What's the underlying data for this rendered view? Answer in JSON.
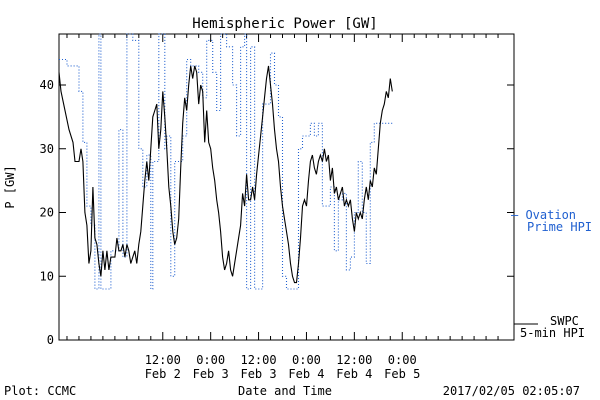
{
  "chart_data": {
    "type": "line",
    "title": "Hemispheric Power [GW]",
    "ylabel": "P [GW]",
    "xlabel": "Date and Time",
    "ylim": [
      0,
      48
    ],
    "xlim": [
      -14,
      100
    ],
    "x_unit": "hours since 2017-02-02 00:00",
    "yticks": [
      0,
      10,
      20,
      30,
      40
    ],
    "xticks": [
      {
        "x": 12,
        "time": "12:00",
        "date": "Feb 2"
      },
      {
        "x": 24,
        "time": "0:00",
        "date": "Feb 3"
      },
      {
        "x": 36,
        "time": "12:00",
        "date": "Feb 3"
      },
      {
        "x": 48,
        "time": "0:00",
        "date": "Feb 4"
      },
      {
        "x": 60,
        "time": "12:00",
        "date": "Feb 4"
      },
      {
        "x": 72,
        "time": "0:00",
        "date": "Feb 5"
      }
    ],
    "series": [
      {
        "name": "SWPC 5-min HPI",
        "style": "solid",
        "color": "#000000",
        "points": [
          [
            -14,
            42
          ],
          [
            -13.5,
            39
          ],
          [
            -12.5,
            36
          ],
          [
            -11.5,
            33
          ],
          [
            -10.5,
            31
          ],
          [
            -10,
            28
          ],
          [
            -9,
            28
          ],
          [
            -8.5,
            30
          ],
          [
            -8,
            28
          ],
          [
            -7.5,
            20
          ],
          [
            -7,
            18
          ],
          [
            -6.5,
            12
          ],
          [
            -6,
            14
          ],
          [
            -5.5,
            24
          ],
          [
            -5,
            16
          ],
          [
            -4.5,
            15
          ],
          [
            -4,
            12
          ],
          [
            -3.5,
            10
          ],
          [
            -3,
            14
          ],
          [
            -2.5,
            11
          ],
          [
            -2,
            14
          ],
          [
            -1.5,
            11
          ],
          [
            -1,
            13
          ],
          [
            0,
            13
          ],
          [
            0.5,
            16
          ],
          [
            1,
            14
          ],
          [
            1.5,
            14
          ],
          [
            2,
            15
          ],
          [
            2.5,
            13
          ],
          [
            3,
            15
          ],
          [
            3.5,
            14
          ],
          [
            4,
            12
          ],
          [
            4.5,
            13
          ],
          [
            5,
            14
          ],
          [
            5.5,
            12
          ],
          [
            6,
            15
          ],
          [
            6.5,
            17
          ],
          [
            7,
            21
          ],
          [
            7.5,
            25
          ],
          [
            8,
            28
          ],
          [
            8.5,
            25
          ],
          [
            9,
            30
          ],
          [
            9.5,
            35
          ],
          [
            10,
            36
          ],
          [
            10.5,
            37
          ],
          [
            11,
            30
          ],
          [
            11.5,
            33
          ],
          [
            12,
            39
          ],
          [
            12.5,
            35
          ],
          [
            13,
            30
          ],
          [
            13.5,
            24
          ],
          [
            14,
            21
          ],
          [
            14.5,
            17
          ],
          [
            15,
            15
          ],
          [
            15.5,
            16
          ],
          [
            16,
            19
          ],
          [
            16.5,
            27
          ],
          [
            17,
            34
          ],
          [
            17.5,
            38
          ],
          [
            18,
            36
          ],
          [
            18.5,
            40
          ],
          [
            19,
            43
          ],
          [
            19.5,
            41
          ],
          [
            20,
            43
          ],
          [
            20.5,
            42
          ],
          [
            21,
            37
          ],
          [
            21.5,
            40
          ],
          [
            22,
            39
          ],
          [
            22.5,
            31
          ],
          [
            23,
            36
          ],
          [
            23.5,
            31
          ],
          [
            24,
            30
          ],
          [
            24.5,
            27
          ],
          [
            25,
            25
          ],
          [
            25.5,
            22
          ],
          [
            26,
            20
          ],
          [
            26.5,
            17
          ],
          [
            27,
            13
          ],
          [
            27.5,
            11
          ],
          [
            28,
            12
          ],
          [
            28.5,
            14
          ],
          [
            29,
            11
          ],
          [
            29.5,
            10
          ],
          [
            30,
            12
          ],
          [
            30.5,
            14
          ],
          [
            31,
            16
          ],
          [
            31.5,
            18
          ],
          [
            32,
            23
          ],
          [
            32.5,
            21
          ],
          [
            33,
            26
          ],
          [
            33.5,
            22
          ],
          [
            34,
            22
          ],
          [
            34.5,
            24
          ],
          [
            35,
            22
          ],
          [
            35.5,
            26
          ],
          [
            36,
            29
          ],
          [
            36.5,
            32
          ],
          [
            37,
            35
          ],
          [
            37.5,
            38
          ],
          [
            38,
            41
          ],
          [
            38.5,
            43
          ],
          [
            39,
            40
          ],
          [
            39.5,
            37
          ],
          [
            40,
            33
          ],
          [
            40.5,
            30
          ],
          [
            41,
            28
          ],
          [
            41.5,
            24
          ],
          [
            42,
            21
          ],
          [
            42.5,
            19
          ],
          [
            43,
            17
          ],
          [
            43.5,
            15
          ],
          [
            44,
            12
          ],
          [
            44.5,
            10
          ],
          [
            45,
            9
          ],
          [
            45.5,
            9
          ],
          [
            46,
            12
          ],
          [
            46.5,
            16
          ],
          [
            47,
            21
          ],
          [
            47.5,
            22
          ],
          [
            48,
            21
          ],
          [
            48.5,
            25
          ],
          [
            49,
            28
          ],
          [
            49.5,
            29
          ],
          [
            50,
            27
          ],
          [
            50.5,
            26
          ],
          [
            51,
            28
          ],
          [
            51.5,
            29
          ],
          [
            52,
            28
          ],
          [
            52.5,
            30
          ],
          [
            53,
            28
          ],
          [
            53.5,
            29
          ],
          [
            54,
            25
          ],
          [
            54.5,
            27
          ],
          [
            55,
            23
          ],
          [
            55.5,
            24
          ],
          [
            56,
            22
          ],
          [
            56.5,
            23
          ],
          [
            57,
            24
          ],
          [
            57.5,
            21
          ],
          [
            58,
            22
          ],
          [
            58.5,
            21
          ],
          [
            59,
            22
          ],
          [
            59.5,
            19
          ],
          [
            60,
            17
          ],
          [
            60.5,
            20
          ],
          [
            61,
            19
          ],
          [
            61.5,
            20
          ],
          [
            62,
            19
          ],
          [
            62.5,
            22
          ],
          [
            63,
            24
          ],
          [
            63.5,
            22
          ],
          [
            64,
            25
          ],
          [
            64.5,
            24
          ],
          [
            65,
            27
          ],
          [
            65.5,
            26
          ],
          [
            66,
            30
          ],
          [
            66.5,
            34
          ],
          [
            67,
            36
          ],
          [
            67.5,
            37
          ],
          [
            68,
            39
          ],
          [
            68.5,
            38
          ],
          [
            69,
            41
          ],
          [
            69.5,
            39
          ]
        ]
      },
      {
        "name": "Ovation Prime HPI",
        "style": "dotted",
        "color": "#2060d0",
        "points": [
          [
            -14,
            44
          ],
          [
            -12,
            44
          ],
          [
            -12,
            43
          ],
          [
            -9,
            43
          ],
          [
            -9,
            39
          ],
          [
            -8,
            39
          ],
          [
            -8,
            31
          ],
          [
            -7,
            31
          ],
          [
            -7,
            21
          ],
          [
            -6,
            21
          ],
          [
            -6,
            18
          ],
          [
            -5,
            18
          ],
          [
            -5,
            8
          ],
          [
            -4,
            8
          ],
          [
            -4,
            48
          ],
          [
            -3.5,
            48
          ],
          [
            -3.5,
            8
          ],
          [
            -1,
            8
          ],
          [
            -1,
            14
          ],
          [
            1,
            14
          ],
          [
            1,
            33
          ],
          [
            2,
            33
          ],
          [
            2,
            13
          ],
          [
            3,
            13
          ],
          [
            3,
            48
          ],
          [
            4.5,
            48
          ],
          [
            4.5,
            47
          ],
          [
            6,
            47
          ],
          [
            6,
            30
          ],
          [
            7,
            30
          ],
          [
            7,
            24
          ],
          [
            8,
            24
          ],
          [
            8,
            29
          ],
          [
            9,
            29
          ],
          [
            9,
            8
          ],
          [
            9.5,
            8
          ],
          [
            9.5,
            28
          ],
          [
            11,
            28
          ],
          [
            11,
            48
          ],
          [
            12.5,
            48
          ],
          [
            12.5,
            30
          ],
          [
            13,
            30
          ],
          [
            13,
            32
          ],
          [
            14,
            32
          ],
          [
            14,
            10
          ],
          [
            15,
            10
          ],
          [
            15,
            28
          ],
          [
            17,
            28
          ],
          [
            17,
            32
          ],
          [
            18,
            32
          ],
          [
            18,
            44
          ],
          [
            19,
            44
          ],
          [
            19,
            43
          ],
          [
            21,
            43
          ],
          [
            21,
            42
          ],
          [
            22,
            42
          ],
          [
            22,
            38
          ],
          [
            23,
            38
          ],
          [
            23,
            47
          ],
          [
            24.5,
            47
          ],
          [
            24.5,
            42
          ],
          [
            25.5,
            42
          ],
          [
            25.5,
            36
          ],
          [
            26.5,
            36
          ],
          [
            26.5,
            48
          ],
          [
            28,
            48
          ],
          [
            28,
            46
          ],
          [
            29.5,
            46
          ],
          [
            29.5,
            40
          ],
          [
            30.5,
            40
          ],
          [
            30.5,
            32
          ],
          [
            31.5,
            32
          ],
          [
            31.5,
            46
          ],
          [
            32.5,
            46
          ],
          [
            32.5,
            48
          ],
          [
            33,
            48
          ],
          [
            33,
            8
          ],
          [
            34,
            8
          ],
          [
            34,
            46
          ],
          [
            35,
            46
          ],
          [
            35,
            8
          ],
          [
            37,
            8
          ],
          [
            37,
            37
          ],
          [
            39,
            37
          ],
          [
            39,
            45
          ],
          [
            40,
            45
          ],
          [
            40,
            40
          ],
          [
            41,
            40
          ],
          [
            41,
            35
          ],
          [
            42,
            35
          ],
          [
            42,
            10
          ],
          [
            43,
            10
          ],
          [
            43,
            8
          ],
          [
            46,
            8
          ],
          [
            46,
            30
          ],
          [
            47,
            30
          ],
          [
            47,
            32
          ],
          [
            49,
            32
          ],
          [
            49,
            34
          ],
          [
            50,
            34
          ],
          [
            50,
            32
          ],
          [
            51,
            32
          ],
          [
            51,
            34
          ],
          [
            52,
            34
          ],
          [
            52,
            21
          ],
          [
            54,
            21
          ],
          [
            54,
            24
          ],
          [
            55,
            24
          ],
          [
            55,
            14
          ],
          [
            56,
            14
          ],
          [
            56,
            22
          ],
          [
            57,
            22
          ],
          [
            57,
            23
          ],
          [
            58,
            23
          ],
          [
            58,
            11
          ],
          [
            59,
            11
          ],
          [
            59,
            13
          ],
          [
            60,
            13
          ],
          [
            60,
            20
          ],
          [
            61,
            20
          ],
          [
            61,
            28
          ],
          [
            62,
            28
          ],
          [
            62,
            20
          ],
          [
            63,
            20
          ],
          [
            63,
            12
          ],
          [
            64,
            12
          ],
          [
            64,
            31
          ],
          [
            65,
            31
          ],
          [
            65,
            34
          ],
          [
            69.5,
            34
          ]
        ]
      }
    ]
  },
  "legend": {
    "ovation_line1": "— Ovation",
    "ovation_line2": "Prime HPI",
    "swpc_line1": "SWPC",
    "swpc_line2": "5-min HPI"
  },
  "footer": {
    "credit": "Plot: CCMC",
    "timestamp": "2017/02/05 02:05:07"
  },
  "colors": {
    "observed": "#000000",
    "model": "#2060d0"
  }
}
